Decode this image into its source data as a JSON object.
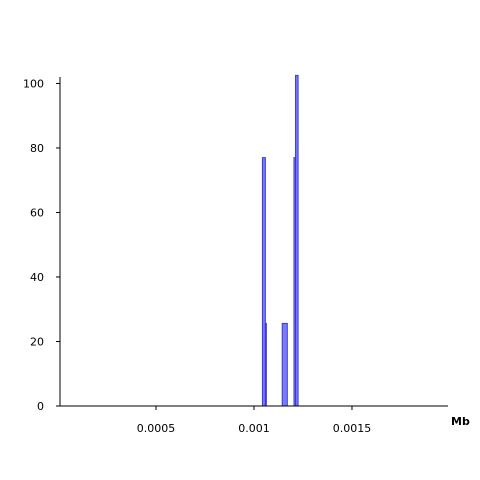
{
  "chart_data": {
    "type": "bar",
    "title": "",
    "xlabel": "Mb",
    "ylabel": "",
    "xlim": [
      1e-05,
      0.00199
    ],
    "ylim": [
      0,
      102
    ],
    "grid": false,
    "legend": "none",
    "x_ticks": [
      {
        "value": 0.0005,
        "label": "0.0005"
      },
      {
        "value": 0.001,
        "label": "0.001"
      },
      {
        "value": 0.0015,
        "label": "0.0015"
      }
    ],
    "y_ticks": [
      {
        "value": 0,
        "label": "0"
      },
      {
        "value": 20,
        "label": "20"
      },
      {
        "value": 40,
        "label": "40"
      },
      {
        "value": 60,
        "label": "60"
      },
      {
        "value": 80,
        "label": "80"
      },
      {
        "value": 100,
        "label": "100"
      }
    ],
    "bars": [
      {
        "x0": 0.001043,
        "x1": 0.001058,
        "value": 77
      },
      {
        "x0": 0.001058,
        "x1": 0.001063,
        "value": 25.6
      },
      {
        "x0": 0.001144,
        "x1": 0.00117,
        "value": 25.6
      },
      {
        "x0": 0.001204,
        "x1": 0.001212,
        "value": 77
      },
      {
        "x0": 0.001212,
        "x1": 0.001225,
        "value": 102.5
      }
    ],
    "colors": {
      "bar_fill": "#7b7bf8",
      "bar_stroke": "#3a3ad6"
    }
  }
}
